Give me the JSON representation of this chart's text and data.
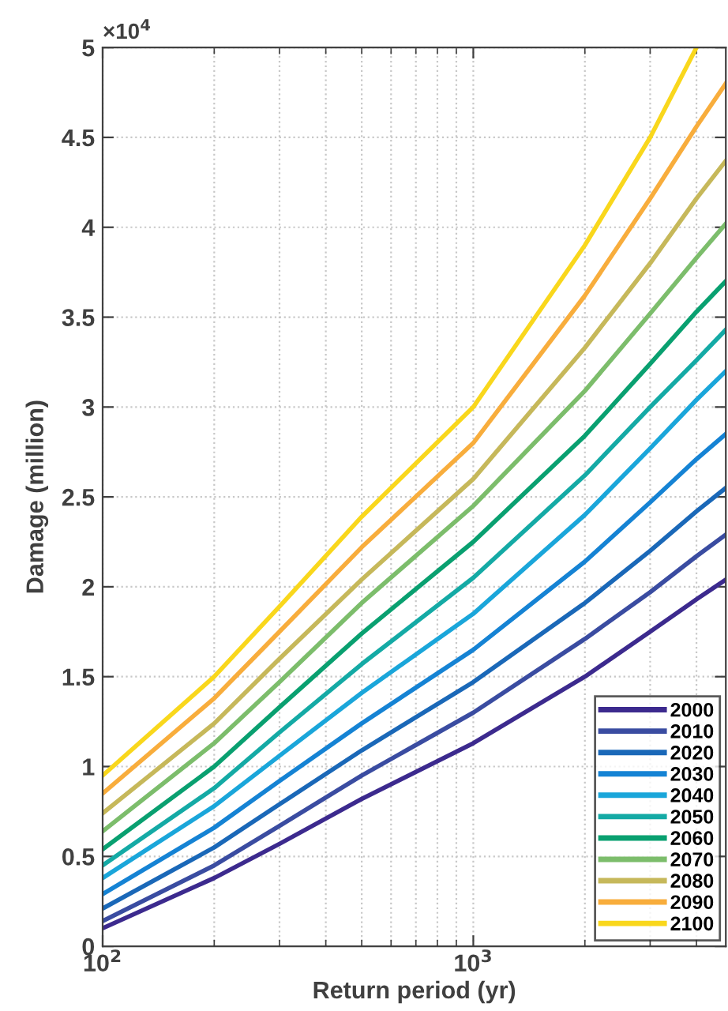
{
  "chart_data": {
    "type": "line",
    "xlabel": "Return period (yr)",
    "ylabel": "Damage (million)",
    "log": "x",
    "x": [
      100,
      200,
      300,
      500,
      1000,
      2000,
      3000,
      4000,
      4800
    ],
    "xlim": [
      100,
      4800
    ],
    "xticks": [
      {
        "value": 100,
        "label": "10$^{2}$"
      },
      {
        "value": 1000,
        "label": "10$^{3}$"
      }
    ],
    "ylim": [
      0,
      5
    ],
    "yticks": [
      0,
      0.5,
      1,
      1.5,
      2,
      2.5,
      3,
      3.5,
      4,
      4.5,
      5
    ],
    "annotations": [
      "×10$^{4}$"
    ],
    "grid": true,
    "legend": "bottom right",
    "marker": "none",
    "line_style": "solid",
    "series": [
      {
        "name": "2000",
        "color": "#3c2a8e",
        "values": [
          0.1,
          0.38,
          0.57,
          0.82,
          1.13,
          1.5,
          1.75,
          1.93,
          2.04
        ]
      },
      {
        "name": "2010",
        "color": "#3a4ca1",
        "values": [
          0.14,
          0.45,
          0.67,
          0.95,
          1.3,
          1.71,
          1.97,
          2.17,
          2.29
        ]
      },
      {
        "name": "2020",
        "color": "#1a68b8",
        "values": [
          0.21,
          0.55,
          0.79,
          1.09,
          1.47,
          1.91,
          2.2,
          2.42,
          2.55
        ]
      },
      {
        "name": "2030",
        "color": "#1583d4",
        "values": [
          0.29,
          0.66,
          0.92,
          1.24,
          1.65,
          2.14,
          2.47,
          2.71,
          2.85
        ]
      },
      {
        "name": "2040",
        "color": "#1aa6da",
        "values": [
          0.38,
          0.78,
          1.06,
          1.41,
          1.85,
          2.4,
          2.77,
          3.04,
          3.2
        ]
      },
      {
        "name": "2050",
        "color": "#14aaa5",
        "values": [
          0.45,
          0.88,
          1.19,
          1.57,
          2.05,
          2.62,
          3.0,
          3.26,
          3.43
        ]
      },
      {
        "name": "2060",
        "color": "#09a070",
        "values": [
          0.54,
          1.0,
          1.33,
          1.74,
          2.25,
          2.84,
          3.24,
          3.53,
          3.7
        ]
      },
      {
        "name": "2070",
        "color": "#7cbd6b",
        "values": [
          0.64,
          1.13,
          1.47,
          1.91,
          2.45,
          3.09,
          3.52,
          3.83,
          4.02
        ]
      },
      {
        "name": "2080",
        "color": "#c6b85a",
        "values": [
          0.74,
          1.24,
          1.6,
          2.04,
          2.6,
          3.33,
          3.8,
          4.16,
          4.37
        ]
      },
      {
        "name": "2090",
        "color": "#f8ad3c",
        "values": [
          0.85,
          1.38,
          1.75,
          2.22,
          2.8,
          3.62,
          4.16,
          4.56,
          4.8
        ]
      },
      {
        "name": "2100",
        "color": "#f9d71c",
        "values": [
          0.95,
          1.5,
          1.89,
          2.39,
          3.0,
          3.9,
          4.5,
          5.0,
          null
        ]
      }
    ]
  }
}
